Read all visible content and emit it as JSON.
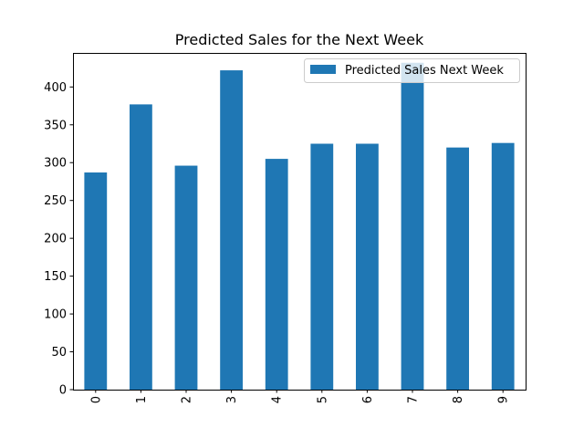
{
  "chart_data": {
    "type": "bar",
    "title": "Predicted Sales for the Next Week",
    "xlabel": "",
    "ylabel": "",
    "categories": [
      "0",
      "1",
      "2",
      "3",
      "4",
      "5",
      "6",
      "7",
      "8",
      "9"
    ],
    "series": [
      {
        "name": "Predicted Sales Next Week",
        "values": [
          287,
          377,
          296,
          422,
          305,
          325,
          325,
          432,
          320,
          326
        ],
        "color": "#1f77b4"
      }
    ],
    "ylim": [
      0,
      445
    ],
    "yticks": [
      "0",
      "50",
      "100",
      "150",
      "200",
      "250",
      "300",
      "350",
      "400"
    ],
    "x_tick_rotation": "vertical",
    "grid": false,
    "legend_position": "top-right"
  }
}
